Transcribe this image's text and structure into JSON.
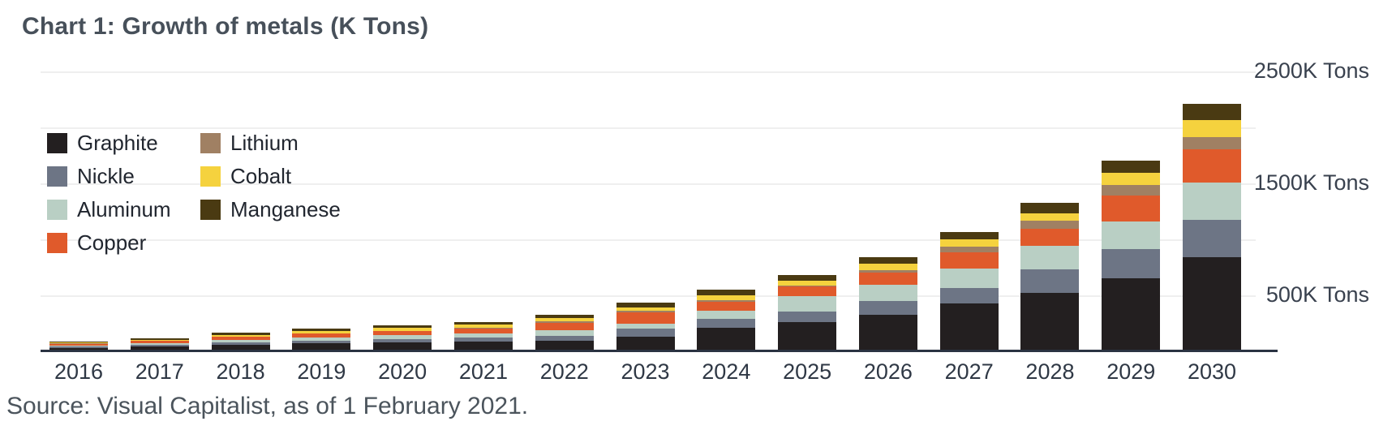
{
  "header": {
    "title": "Chart 1: Growth of metals (K Tons)"
  },
  "source": {
    "text": "Source: Visual Capitalist, as of 1 February 2021."
  },
  "chart_data": {
    "type": "bar",
    "stacked": true,
    "title": "Chart 1: Growth of metals (K Tons)",
    "unit": "K Tons",
    "xlabel": "",
    "ylabel": "K Tons",
    "ylim": [
      0,
      2500
    ],
    "grid_step": 500,
    "grid": true,
    "legend_position": "top-left",
    "categories": [
      "2016",
      "2017",
      "2018",
      "2019",
      "2020",
      "2021",
      "2022",
      "2023",
      "2024",
      "2025",
      "2026",
      "2027",
      "2028",
      "2029",
      "2030"
    ],
    "series": [
      {
        "name": "Graphite",
        "color": "#231f20",
        "values": [
          32,
          43,
          60,
          72,
          82,
          88,
          92,
          132,
          210,
          261,
          326,
          428,
          519,
          652,
          838
        ]
      },
      {
        "name": "Nickle",
        "color": "#6d7585",
        "values": [
          9,
          13,
          19,
          24,
          28,
          34,
          48,
          70,
          80,
          94,
          121,
          140,
          212,
          259,
          333
        ]
      },
      {
        "name": "Aluminum",
        "color": "#b9cfc4",
        "values": [
          12,
          16,
          22,
          28,
          32,
          38,
          48,
          48,
          70,
          135,
          145,
          174,
          210,
          249,
          338
        ]
      },
      {
        "name": "Copper",
        "color": "#e05a2b",
        "values": [
          14,
          19,
          28,
          33,
          37,
          46,
          68,
          95,
          85,
          89,
          109,
          145,
          152,
          230,
          295
        ]
      },
      {
        "name": "Lithium",
        "color": "#a08063",
        "values": [
          3,
          3,
          4,
          5,
          6,
          7,
          9,
          14,
          15,
          10,
          24,
          48,
          72,
          96,
          111
        ]
      },
      {
        "name": "Cobalt",
        "color": "#f5d23e",
        "values": [
          8,
          10,
          15,
          18,
          22,
          23,
          30,
          34,
          40,
          43,
          56,
          68,
          65,
          109,
          150
        ]
      },
      {
        "name": "Manganese",
        "color": "#4a3a12",
        "values": [
          9,
          12,
          19,
          23,
          27,
          26,
          31,
          42,
          50,
          48,
          58,
          65,
          97,
          109,
          145
        ]
      }
    ],
    "totals": [
      87,
      116,
      167,
      203,
      234,
      262,
      326,
      435,
      550,
      680,
      839,
      1068,
      1327,
      1704,
      2210
    ],
    "right_axis_labels": [
      {
        "label": "2500K Tons",
        "value": 2500
      },
      {
        "label": "1500K Tons",
        "value": 1500
      },
      {
        "label": "500K Tons",
        "value": 500
      }
    ]
  }
}
